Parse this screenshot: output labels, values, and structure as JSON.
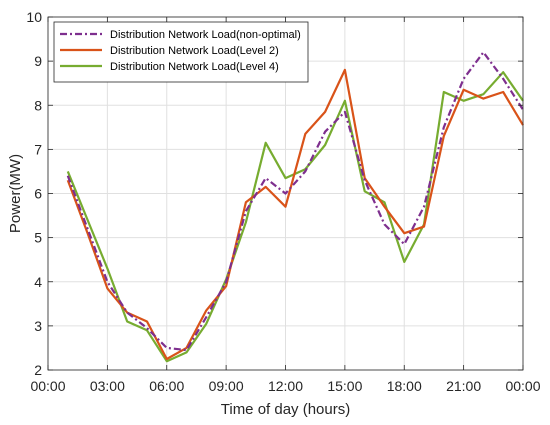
{
  "chart_data": {
    "type": "line",
    "xlabel": "Time of day (hours)",
    "ylabel": "Power(MW)",
    "xlim": [
      0,
      24
    ],
    "ylim": [
      2,
      10
    ],
    "grid": true,
    "legend_position": "top-left",
    "x_ticks": [
      0,
      3,
      6,
      9,
      12,
      15,
      18,
      21,
      24
    ],
    "x_tick_labels": [
      "00:00",
      "03:00",
      "06:00",
      "09:00",
      "12:00",
      "15:00",
      "18:00",
      "21:00",
      "00:00"
    ],
    "y_ticks": [
      2,
      3,
      4,
      5,
      6,
      7,
      8,
      9,
      10
    ],
    "y_tick_labels": [
      "2",
      "3",
      "4",
      "5",
      "6",
      "7",
      "8",
      "9",
      "10"
    ],
    "x": [
      1,
      2,
      3,
      4,
      5,
      6,
      7,
      8,
      9,
      10,
      11,
      12,
      13,
      14,
      15,
      16,
      17,
      18,
      19,
      20,
      21,
      22,
      23,
      24
    ],
    "series": [
      {
        "name": "Distribution Network Load(non-optimal)",
        "color": "#7E2F8E",
        "dash": "dashdot",
        "values": [
          6.4,
          5.2,
          4.0,
          3.3,
          2.95,
          2.5,
          2.45,
          3.2,
          4.0,
          5.6,
          6.35,
          6.0,
          6.5,
          7.4,
          7.85,
          6.3,
          5.3,
          4.85,
          5.7,
          7.5,
          8.6,
          9.2,
          8.6,
          7.9
        ]
      },
      {
        "name": "Distribution Network Load(Level 2)",
        "color": "#D95319",
        "dash": "solid",
        "values": [
          6.3,
          5.1,
          3.85,
          3.3,
          3.1,
          2.25,
          2.5,
          3.35,
          3.9,
          5.8,
          6.15,
          5.7,
          7.35,
          7.85,
          8.8,
          6.35,
          5.7,
          5.1,
          5.25,
          7.3,
          8.35,
          8.15,
          8.3,
          7.55
        ]
      },
      {
        "name": "Distribution Network Load(Level 4)",
        "color": "#77AC30",
        "dash": "solid",
        "values": [
          6.5,
          5.4,
          4.3,
          3.1,
          2.9,
          2.2,
          2.4,
          3.05,
          4.05,
          5.35,
          7.15,
          6.35,
          6.55,
          7.1,
          8.1,
          6.05,
          5.8,
          4.45,
          5.3,
          8.3,
          8.1,
          8.25,
          8.75,
          8.1
        ]
      }
    ]
  }
}
